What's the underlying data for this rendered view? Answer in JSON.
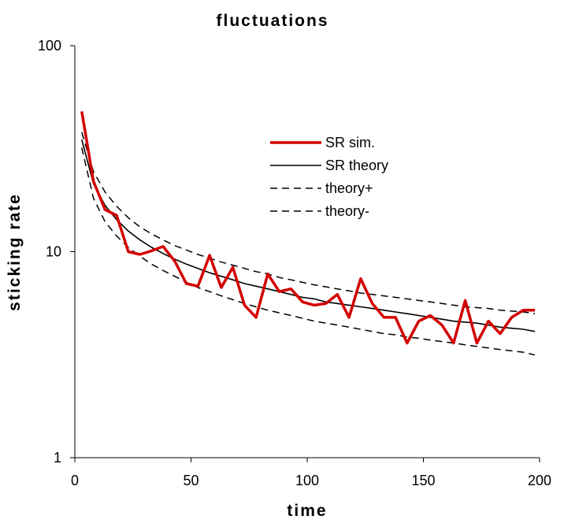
{
  "chart_data": {
    "type": "line",
    "title": "fluctuations",
    "xlabel": "time",
    "ylabel": "sticking rate",
    "xlim": [
      0,
      200
    ],
    "ylim": [
      1,
      100
    ],
    "yscale": "log",
    "xticks": [
      0,
      50,
      100,
      150,
      200
    ],
    "yticks": [
      1,
      10,
      100
    ],
    "xtick_labels": [
      "0",
      "50",
      "100",
      "150",
      "200"
    ],
    "ytick_labels": [
      "1",
      "10",
      "100"
    ],
    "grid": false,
    "legend_position": "upper-right (inside plot)",
    "series": [
      {
        "name": "SR sim.",
        "style": "solid-thick",
        "color": "#d40000",
        "x": [
          3,
          8,
          13,
          18,
          23,
          28,
          33,
          38,
          43,
          48,
          53,
          58,
          63,
          68,
          73,
          78,
          83,
          88,
          93,
          98,
          103,
          108,
          113,
          118,
          123,
          128,
          133,
          138,
          143,
          148,
          153,
          158,
          163,
          168,
          173,
          178,
          183,
          188,
          193,
          198
        ],
        "y": [
          48,
          22,
          16,
          15,
          10,
          9.7,
          10.1,
          10.6,
          9.0,
          7.0,
          6.8,
          9.6,
          6.7,
          8.4,
          5.5,
          4.8,
          7.8,
          6.4,
          6.6,
          5.7,
          5.5,
          5.6,
          6.2,
          4.8,
          7.4,
          5.6,
          4.8,
          4.8,
          3.6,
          4.6,
          4.9,
          4.4,
          3.6,
          5.8,
          3.6,
          4.6,
          4.0,
          4.8,
          5.2,
          5.2
        ]
      },
      {
        "name": "SR theory",
        "style": "solid-thin",
        "color": "#000000",
        "x": [
          3,
          8,
          13,
          18,
          23,
          28,
          33,
          38,
          43,
          48,
          53,
          58,
          63,
          68,
          73,
          78,
          83,
          88,
          93,
          98,
          103,
          108,
          113,
          118,
          123,
          128,
          133,
          138,
          143,
          148,
          153,
          158,
          163,
          168,
          173,
          178,
          183,
          188,
          193,
          198
        ],
        "y": [
          35,
          21.4,
          16.8,
          14.3,
          12.6,
          11.4,
          10.5,
          9.8,
          9.2,
          8.7,
          8.3,
          7.9,
          7.6,
          7.3,
          7.0,
          6.8,
          6.6,
          6.4,
          6.2,
          6.0,
          5.9,
          5.7,
          5.6,
          5.5,
          5.4,
          5.3,
          5.2,
          5.1,
          5.0,
          4.9,
          4.8,
          4.7,
          4.6,
          4.55,
          4.5,
          4.4,
          4.3,
          4.25,
          4.2,
          4.1
        ]
      },
      {
        "name": "theory+",
        "style": "dashed",
        "color": "#000000",
        "x": [
          3,
          8,
          13,
          18,
          23,
          28,
          33,
          38,
          43,
          48,
          53,
          58,
          63,
          68,
          73,
          78,
          83,
          88,
          93,
          98,
          103,
          108,
          113,
          118,
          123,
          128,
          133,
          138,
          143,
          148,
          153,
          158,
          163,
          168,
          173,
          178,
          183,
          188,
          193,
          198
        ],
        "y": [
          38,
          24.5,
          19.5,
          16.6,
          14.6,
          13.2,
          12.2,
          11.4,
          10.7,
          10.2,
          9.7,
          9.3,
          8.9,
          8.6,
          8.3,
          8.0,
          7.8,
          7.5,
          7.3,
          7.1,
          6.9,
          6.75,
          6.6,
          6.45,
          6.3,
          6.2,
          6.1,
          6.0,
          5.9,
          5.8,
          5.7,
          5.6,
          5.5,
          5.4,
          5.35,
          5.3,
          5.2,
          5.15,
          5.1,
          5.0
        ]
      },
      {
        "name": "theory-",
        "style": "dashed",
        "color": "#000000",
        "x": [
          3,
          8,
          13,
          18,
          23,
          28,
          33,
          38,
          43,
          48,
          53,
          58,
          63,
          68,
          73,
          78,
          83,
          88,
          93,
          98,
          103,
          108,
          113,
          118,
          123,
          128,
          133,
          138,
          143,
          148,
          153,
          158,
          163,
          168,
          173,
          178,
          183,
          188,
          193,
          198
        ],
        "y": [
          32,
          18.2,
          14.0,
          11.9,
          10.5,
          9.5,
          8.7,
          8.1,
          7.6,
          7.1,
          6.7,
          6.4,
          6.1,
          5.85,
          5.6,
          5.4,
          5.2,
          5.05,
          4.9,
          4.75,
          4.6,
          4.5,
          4.4,
          4.3,
          4.2,
          4.1,
          4.0,
          3.95,
          3.85,
          3.8,
          3.72,
          3.66,
          3.6,
          3.53,
          3.47,
          3.41,
          3.35,
          3.3,
          3.25,
          3.15
        ]
      }
    ]
  }
}
